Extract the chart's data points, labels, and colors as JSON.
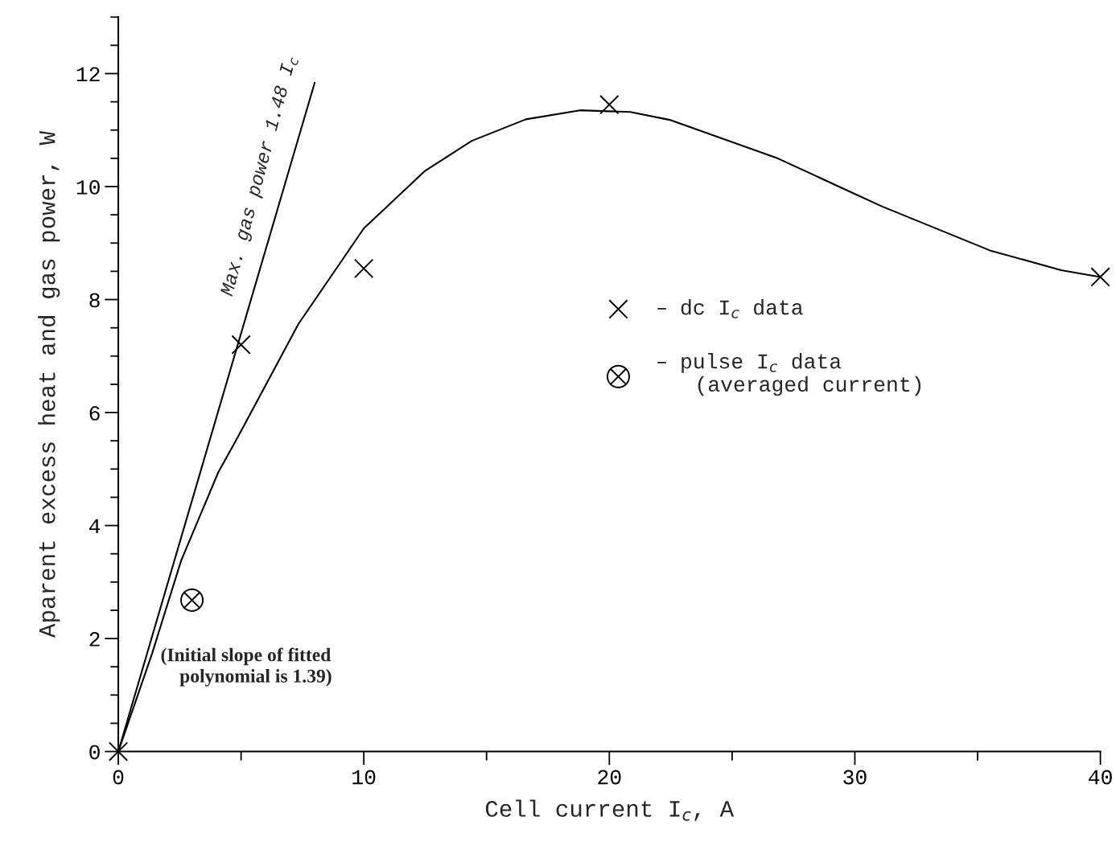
{
  "chart_data": {
    "type": "scatter",
    "xlabel": "Cell current I$_{c}$, A",
    "ylabel": "Aparent excess heat and gas power, W",
    "xlim": [
      0,
      40
    ],
    "ylim": [
      0,
      13
    ],
    "xticks": [
      0,
      {
        "value": 5,
        "label": null
      },
      10,
      {
        "value": 15,
        "label": null
      },
      20,
      {
        "value": 25,
        "label": null
      },
      30,
      {
        "value": 35,
        "label": null
      },
      40
    ],
    "yticks": [
      0,
      {
        "value": 0.5,
        "label": null
      },
      {
        "value": 1,
        "label": null
      },
      {
        "value": 1.5,
        "label": null
      },
      2,
      {
        "value": 2.5,
        "label": null
      },
      {
        "value": 3,
        "label": null
      },
      {
        "value": 3.5,
        "label": null
      },
      4,
      {
        "value": 4.5,
        "label": null
      },
      {
        "value": 5,
        "label": null
      },
      {
        "value": 5.5,
        "label": null
      },
      6,
      {
        "value": 6.5,
        "label": null
      },
      {
        "value": 7,
        "label": null
      },
      {
        "value": 7.5,
        "label": null
      },
      8,
      {
        "value": 8.5,
        "label": null
      },
      {
        "value": 9,
        "label": null
      },
      {
        "value": 9.5,
        "label": null
      },
      10,
      {
        "value": 10.5,
        "label": null
      },
      {
        "value": 11,
        "label": null
      },
      {
        "value": 11.5,
        "label": null
      },
      12,
      {
        "value": 12.5,
        "label": null
      },
      {
        "value": 13,
        "label": null
      }
    ],
    "legend": "center right",
    "grid": false,
    "annotations": [
      "(Initial slope of fitted\n    polynomial is 1.39)"
    ],
    "series": [
      {
        "name": "– dc I$_{c}$ data",
        "marker": "cross",
        "color": "#000000",
        "x": [
          0,
          5,
          10,
          20,
          40
        ],
        "values": [
          0,
          7.2,
          8.55,
          11.45,
          8.4
        ]
      },
      {
        "name": "– pulse I$_{c}$ data\n   (averaged current)",
        "marker": "circle",
        "color": "#000000",
        "x": [
          3
        ],
        "values": [
          2.68
        ]
      },
      {
        "type": "line",
        "color": "#000000",
        "x": [
          0,
          1.38,
          2.56,
          4.07,
          4.9,
          5.48,
          7.34,
          10,
          12.5,
          14.4,
          16.6,
          18.8,
          20.85,
          22.46,
          26.8,
          31.1,
          35.5,
          38.4,
          40
        ],
        "values": [
          0,
          1.74,
          3.38,
          4.94,
          5.59,
          6.06,
          7.57,
          9.26,
          10.28,
          10.81,
          11.19,
          11.35,
          11.32,
          11.18,
          10.51,
          9.65,
          8.87,
          8.52,
          8.4
        ]
      },
      {
        "name": "Max. gas power 1.48 I$_{c}$",
        "type": "line",
        "color": "#000000",
        "x": [
          0,
          8
        ],
        "values": [
          0,
          11.84
        ]
      }
    ]
  }
}
